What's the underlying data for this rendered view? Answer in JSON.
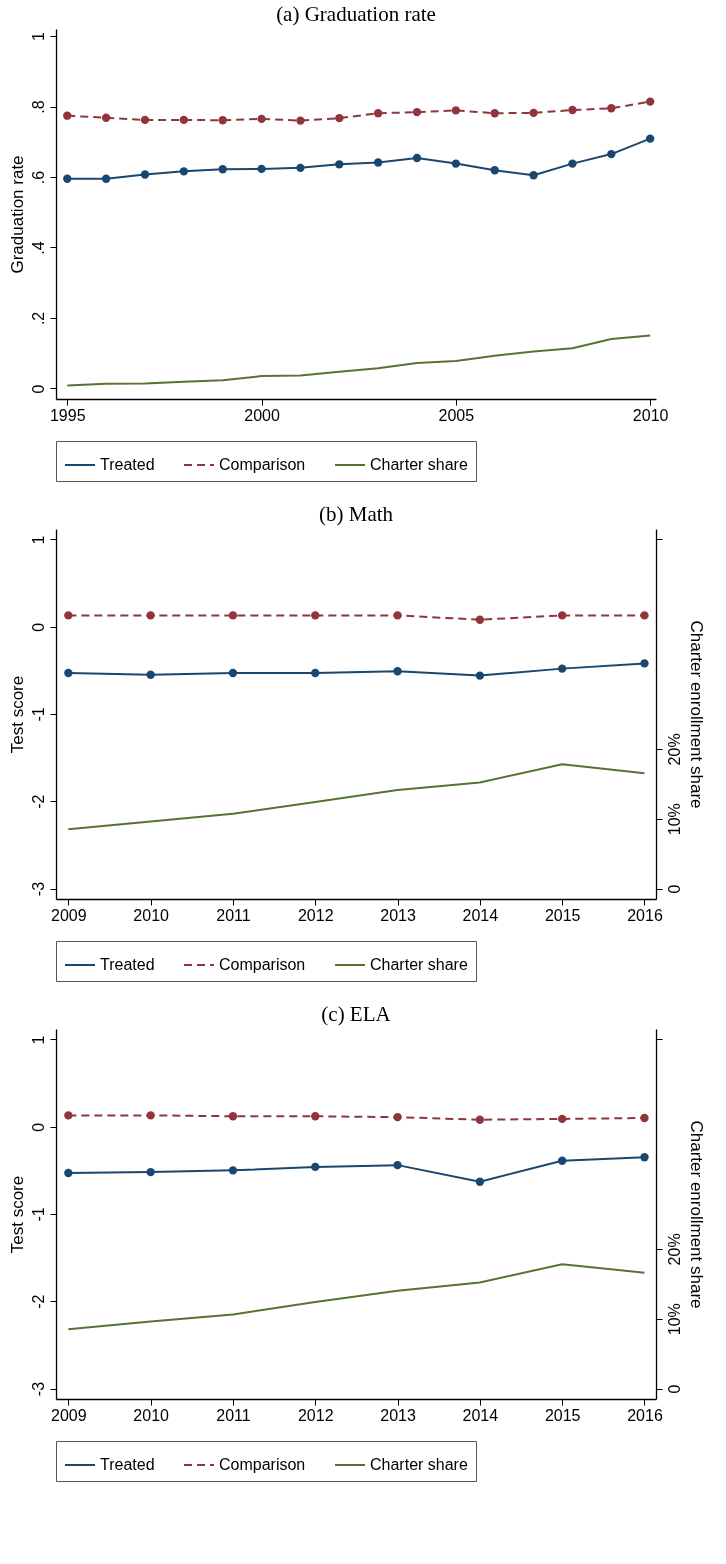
{
  "chart_data": [
    {
      "type": "line",
      "title": "(a) Graduation rate",
      "ylabel": "Graduation rate",
      "legend": "bottom",
      "grid": false,
      "x": [
        1995,
        1996,
        1997,
        1998,
        1999,
        2000,
        2001,
        2002,
        2003,
        2004,
        2005,
        2006,
        2007,
        2008,
        2009,
        2010
      ],
      "xlim": [
        1994.71,
        2010.15
      ],
      "xticks": [
        1995,
        2000,
        2005,
        2010
      ],
      "ylim": [
        -0.03,
        1.02
      ],
      "yticks": [
        {
          "value": 0,
          "label": "0"
        },
        {
          "value": 0.2,
          "label": ".2"
        },
        {
          "value": 0.4,
          "label": ".4"
        },
        {
          "value": 0.6,
          "label": ".6"
        },
        {
          "value": 0.8,
          "label": ".8"
        },
        {
          "value": 1,
          "label": "1"
        }
      ],
      "series": [
        {
          "name": "Treated",
          "color": "#1a476f",
          "marker": "circle",
          "line_style": "solid",
          "values": [
            0.595,
            0.595,
            0.607,
            0.616,
            0.622,
            0.623,
            0.626,
            0.636,
            0.641,
            0.654,
            0.638,
            0.619,
            0.605,
            0.638,
            0.665,
            0.709
          ]
        },
        {
          "name": "Comparison",
          "color": "#90353b",
          "marker": "circle",
          "line_style": "dashed",
          "values": [
            0.774,
            0.768,
            0.762,
            0.762,
            0.761,
            0.765,
            0.76,
            0.767,
            0.781,
            0.784,
            0.789,
            0.781,
            0.782,
            0.79,
            0.795,
            0.814
          ]
        },
        {
          "name": "Charter share",
          "color": "#55752f",
          "marker": "none",
          "line_style": "solid",
          "values": [
            0.008,
            0.013,
            0.014,
            0.019,
            0.023,
            0.035,
            0.037,
            0.047,
            0.057,
            0.072,
            0.078,
            0.093,
            0.105,
            0.114,
            0.14,
            0.15
          ]
        }
      ]
    },
    {
      "type": "line",
      "title": "(b) Math",
      "ylabel": "Test score",
      "y2label": "Charter enrollment share",
      "legend": "bottom",
      "grid": false,
      "x": [
        2009,
        2010,
        2011,
        2012,
        2013,
        2014,
        2015,
        2016
      ],
      "xlim": [
        2008.85,
        2016.14
      ],
      "xticks": [
        2009,
        2010,
        2011,
        2012,
        2013,
        2014,
        2015,
        2016
      ],
      "ylim": [
        -3.12,
        1.12
      ],
      "yticks": [
        -3,
        -2,
        -1,
        0,
        1
      ],
      "y2lim": [
        -0.015,
        0.515
      ],
      "y2ticks": [
        0,
        {
          "value": 0.1,
          "label": "10%"
        },
        {
          "value": 0.2,
          "label": "20%"
        },
        {
          "value": 0.5,
          "label": null
        }
      ],
      "series": [
        {
          "name": "Treated",
          "color": "#1a476f",
          "marker": "circle",
          "line_style": "solid",
          "values": [
            -0.53,
            -0.55,
            -0.53,
            -0.53,
            -0.51,
            -0.56,
            -0.48,
            -0.42
          ]
        },
        {
          "name": "Comparison",
          "color": "#90353b",
          "marker": "circle",
          "line_style": "dashed",
          "values": [
            0.13,
            0.13,
            0.13,
            0.13,
            0.13,
            0.08,
            0.13,
            0.13
          ]
        },
        {
          "name": "Charter share",
          "color": "#55752f",
          "marker": "none",
          "line_style": "solid",
          "axis": "y2",
          "values": [
            0.085,
            0.096,
            0.107,
            0.124,
            0.141,
            0.152,
            0.178,
            0.165
          ]
        }
      ]
    },
    {
      "type": "line",
      "title": "(c) ELA",
      "ylabel": "Test score",
      "y2label": "Charter enrollment share",
      "legend": "bottom",
      "grid": false,
      "x": [
        2009,
        2010,
        2011,
        2012,
        2013,
        2014,
        2015,
        2016
      ],
      "xlim": [
        2008.85,
        2016.14
      ],
      "xticks": [
        2009,
        2010,
        2011,
        2012,
        2013,
        2014,
        2015,
        2016
      ],
      "ylim": [
        -3.12,
        1.12
      ],
      "yticks": [
        -3,
        -2,
        -1,
        0,
        1
      ],
      "y2lim": [
        -0.015,
        0.515
      ],
      "y2ticks": [
        0,
        {
          "value": 0.1,
          "label": "10%"
        },
        {
          "value": 0.2,
          "label": "20%"
        },
        {
          "value": 0.5,
          "label": null
        }
      ],
      "series": [
        {
          "name": "Treated",
          "color": "#1a476f",
          "marker": "circle",
          "line_style": "solid",
          "values": [
            -0.53,
            -0.52,
            -0.5,
            -0.46,
            -0.44,
            -0.63,
            -0.39,
            -0.35
          ]
        },
        {
          "name": "Comparison",
          "color": "#90353b",
          "marker": "circle",
          "line_style": "dashed",
          "values": [
            0.13,
            0.13,
            0.12,
            0.12,
            0.11,
            0.08,
            0.09,
            0.1
          ]
        },
        {
          "name": "Charter share",
          "color": "#55752f",
          "marker": "none",
          "line_style": "solid",
          "axis": "y2",
          "values": [
            0.085,
            0.096,
            0.106,
            0.124,
            0.14,
            0.152,
            0.178,
            0.166
          ]
        }
      ]
    }
  ]
}
